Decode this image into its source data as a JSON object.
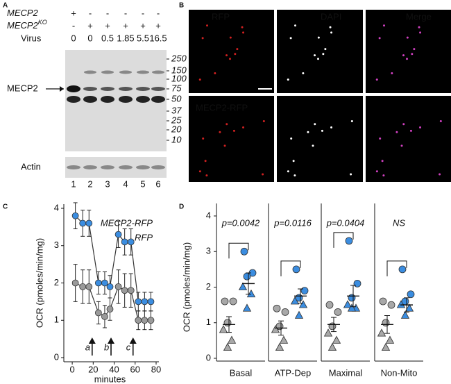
{
  "panel_a": {
    "label": "A",
    "genotype": [
      {
        "name": "MECP2",
        "values": [
          "+",
          "-",
          "-",
          "-",
          "-",
          "-"
        ]
      },
      {
        "name": "MECP2",
        "superscript": "KO",
        "values": [
          "-",
          "+",
          "+",
          "+",
          "+",
          "+"
        ]
      }
    ],
    "virus_label": "Virus",
    "virus": [
      0,
      0,
      0.5,
      1.85,
      5.5,
      16.5
    ],
    "mw_markers": [
      250,
      150,
      100,
      75,
      50,
      37,
      25,
      20,
      10
    ],
    "band_label": "MECP2",
    "actin_label": "Actin",
    "lanes": [
      1,
      2,
      3,
      4,
      5,
      6
    ]
  },
  "panel_b": {
    "label": "B",
    "columns": [
      "RFP",
      "DAPI",
      "Merge"
    ],
    "row2_label": "MECP2-RFP"
  },
  "chart_data": [
    {
      "type": "line",
      "panel": "C",
      "xlabel": "minutes",
      "ylabel": "OCR (pmoles/min/mg)",
      "xlim": [
        -8,
        80
      ],
      "ylim": [
        0,
        4
      ],
      "xticks": [
        0,
        20,
        40,
        60,
        80
      ],
      "yticks": [
        0,
        1,
        2,
        3,
        4
      ],
      "x": [
        3,
        10,
        16,
        25,
        31,
        36,
        44,
        50,
        56,
        63,
        69,
        75
      ],
      "series": [
        {
          "name": "MECP2-RFP",
          "color": "#3b8de0",
          "values": [
            3.8,
            3.6,
            3.6,
            2.0,
            2.0,
            1.9,
            3.3,
            3.1,
            3.1,
            1.5,
            1.5,
            1.5
          ],
          "errors": [
            0.35,
            0.35,
            0.35,
            0.3,
            0.3,
            0.3,
            0.35,
            0.35,
            0.35,
            0.25,
            0.25,
            0.25
          ]
        },
        {
          "name": "RFP",
          "color": "#9a9a9a",
          "values": [
            2.0,
            1.9,
            1.9,
            1.2,
            1.1,
            1.3,
            1.9,
            1.8,
            1.8,
            1.0,
            1.0,
            1.0
          ],
          "errors": [
            0.5,
            0.45,
            0.45,
            0.3,
            0.3,
            0.3,
            0.45,
            0.45,
            0.45,
            0.25,
            0.25,
            0.25
          ]
        }
      ],
      "injections": [
        {
          "label": "a",
          "x": 19
        },
        {
          "label": "b",
          "x": 37
        },
        {
          "label": "c",
          "x": 58
        }
      ]
    },
    {
      "type": "dotplot",
      "panel": "D",
      "ylabel": "OCR (pmoles/min/mg)",
      "ylim": [
        0,
        4
      ],
      "yticks": [
        0,
        1,
        2,
        3,
        4
      ],
      "categories": [
        "Basal",
        "ATP-Dep",
        "Maximal",
        "Non-Mito"
      ],
      "annotations": [
        "p=0.0042",
        "p=0.0116",
        "p=0.0404",
        "NS"
      ],
      "shapes": [
        "circle",
        "circle",
        "circle",
        "triangle",
        "triangle",
        "triangle"
      ],
      "series": [
        {
          "color": "#a8a8a8",
          "values": [
            [
              1.6,
              1.6,
              1.0,
              0.8,
              0.5,
              0.3
            ],
            [
              1.4,
              1.3,
              0.9,
              0.8,
              0.5,
              0.3
            ],
            [
              1.5,
              1.3,
              0.9,
              0.7,
              0.5,
              0.3
            ],
            [
              1.6,
              1.5,
              1.0,
              0.7,
              0.5,
              0.3
            ]
          ],
          "means": [
            0.95,
            0.85,
            0.95,
            0.95
          ],
          "errors": [
            0.22,
            0.2,
            0.2,
            0.25
          ]
        },
        {
          "color": "#3b8de0",
          "values": [
            [
              3.0,
              2.4,
              2.3,
              2.0,
              1.8,
              1.4
            ],
            [
              2.5,
              1.9,
              1.7,
              1.6,
              1.5,
              1.2
            ],
            [
              3.3,
              2.1,
              1.7,
              1.5,
              1.4,
              1.4
            ],
            [
              2.5,
              1.8,
              1.6,
              1.5,
              1.4,
              1.2
            ]
          ],
          "means": [
            2.1,
            1.75,
            1.75,
            1.5
          ],
          "errors": [
            0.3,
            0.2,
            0.3,
            0.2
          ]
        }
      ]
    }
  ]
}
